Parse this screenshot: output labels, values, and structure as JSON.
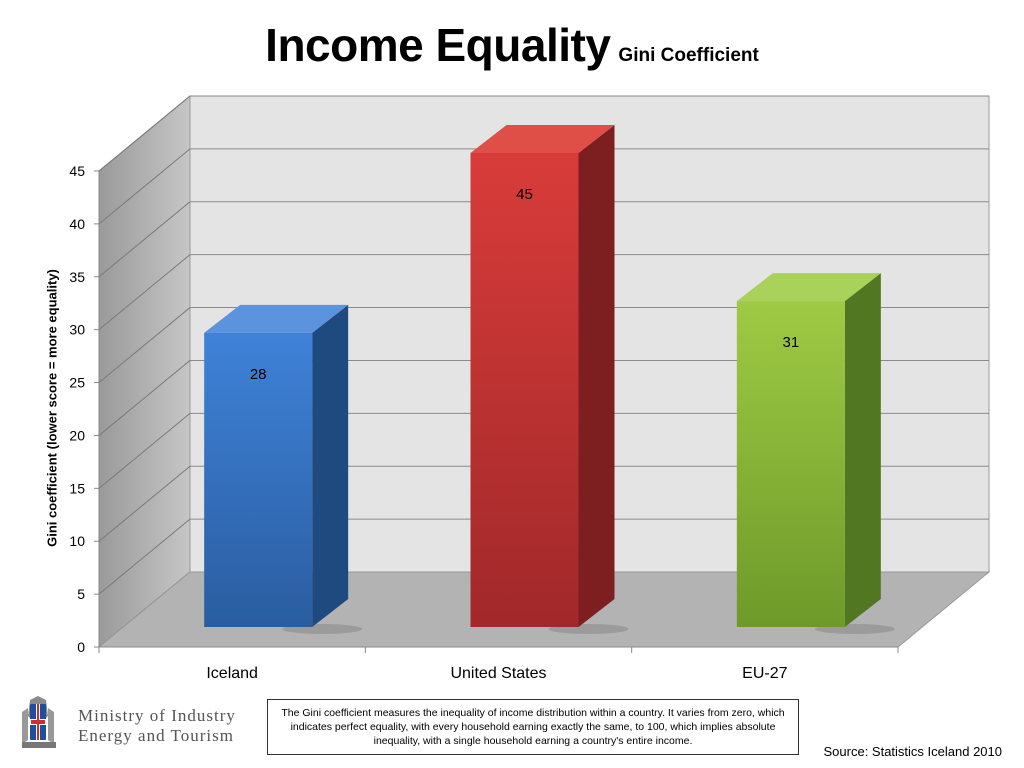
{
  "page": {
    "title": "Income Equality",
    "subtitle": "Gini Coefficient",
    "footnote": "The Gini coefficient measures the inequality of income distribution within a country. It varies from zero, which indicates perfect equality, with every household earning exactly the same, to 100, which implies absolute inequality, with a single household earning a country's entire income.",
    "source": "Source: Statistics Iceland 2010",
    "ministry_line1": "Ministry of Industry",
    "ministry_line2": "Energy and Tourism"
  },
  "chart_data": {
    "type": "bar",
    "style": "3d",
    "title": "Income Equality",
    "subtitle": "Gini Coefficient",
    "xlabel": "",
    "ylabel": "Gini coefficient (lower score = more equality)",
    "categories": [
      "Iceland",
      "United States",
      "EU-27"
    ],
    "values": [
      28,
      45,
      31
    ],
    "data_labels": [
      "28",
      "45",
      "31"
    ],
    "bar_colors": [
      "#3a78c9",
      "#cc3333",
      "#8fbf3a"
    ],
    "ylim": [
      0,
      45
    ],
    "yticks": [
      0,
      5,
      10,
      15,
      20,
      25,
      30,
      35,
      40,
      45
    ],
    "grid": true,
    "legend": "none"
  }
}
